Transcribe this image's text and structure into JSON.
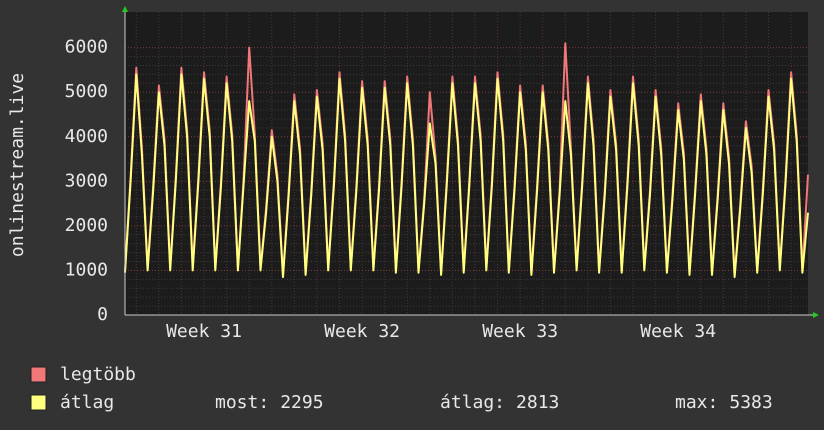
{
  "chart_data": {
    "type": "line",
    "y_label": "onlinestream.live",
    "categories": [
      null,
      null,
      null,
      null,
      null,
      null,
      null,
      null,
      null,
      null,
      null,
      null,
      null,
      null,
      "Week 31",
      null,
      null,
      null,
      null,
      null,
      null,
      null,
      null,
      null,
      null,
      null,
      null,
      null,
      null,
      null,
      null,
      null,
      null,
      null,
      null,
      null,
      null,
      null,
      null,
      null,
      null,
      null,
      "Week 32",
      null,
      null,
      null,
      null,
      null,
      null,
      null,
      null,
      null,
      null,
      null,
      null,
      null,
      null,
      null,
      null,
      null,
      null,
      null,
      null,
      null,
      null,
      null,
      null,
      null,
      null,
      null,
      "Week 33",
      null,
      null,
      null,
      null,
      null,
      null,
      null,
      null,
      null,
      null,
      null,
      null,
      null,
      null,
      null,
      null,
      null,
      null,
      null,
      null,
      null,
      null,
      null,
      null,
      null,
      null,
      null,
      "Week 34",
      null,
      null,
      null,
      null,
      null,
      null,
      null,
      null,
      null,
      null,
      null,
      null,
      null,
      null,
      null,
      null,
      null,
      null,
      null,
      null,
      null,
      null,
      null
    ],
    "series": [
      {
        "name": "legtöbb",
        "color": "#f07878",
        "values": [
          1000,
          3100,
          5550,
          3750,
          1050,
          2900,
          5150,
          3950,
          1050,
          3100,
          5550,
          4150,
          1050,
          3100,
          5450,
          4150,
          1050,
          3000,
          5350,
          4050,
          1050,
          3000,
          6000,
          4050,
          1050,
          2400,
          4150,
          3150,
          900,
          2800,
          4950,
          3750,
          950,
          2800,
          5050,
          3850,
          1050,
          3000,
          5450,
          4050,
          1050,
          2900,
          5250,
          3950,
          1050,
          2900,
          5250,
          3950,
          1000,
          3000,
          5350,
          3950,
          1000,
          2600,
          5000,
          3550,
          950,
          3000,
          5350,
          3950,
          1000,
          3000,
          5350,
          4050,
          1050,
          3000,
          5450,
          4050,
          1000,
          2900,
          5150,
          3850,
          950,
          2900,
          5150,
          3850,
          1000,
          2800,
          6100,
          3750,
          1050,
          3000,
          5350,
          3950,
          1000,
          2800,
          5050,
          3850,
          1000,
          3000,
          5350,
          3950,
          1050,
          2800,
          5050,
          3750,
          1000,
          2700,
          4750,
          3650,
          950,
          2800,
          4950,
          3750,
          950,
          2700,
          4750,
          3550,
          900,
          2500,
          4350,
          3350,
          1000,
          2800,
          5050,
          3850,
          1050,
          3000,
          5450,
          4050,
          1000,
          3150
        ]
      },
      {
        "name": "átlag",
        "color": "#ffff80",
        "values": [
          950,
          3000,
          5400,
          3600,
          1000,
          2800,
          5000,
          3800,
          1000,
          3000,
          5400,
          4000,
          1000,
          3000,
          5300,
          4000,
          1000,
          2900,
          5200,
          3900,
          1000,
          2900,
          4800,
          3900,
          1000,
          2300,
          4000,
          3000,
          850,
          2700,
          4800,
          3600,
          900,
          2700,
          4900,
          3700,
          1000,
          2900,
          5300,
          3900,
          1000,
          2800,
          5100,
          3800,
          1000,
          2800,
          5100,
          3800,
          950,
          2900,
          5200,
          3800,
          950,
          2500,
          4300,
          3400,
          900,
          2900,
          5200,
          3800,
          950,
          2900,
          5200,
          3900,
          1000,
          2900,
          5300,
          3900,
          950,
          2800,
          5000,
          3700,
          900,
          2800,
          5000,
          3700,
          950,
          2700,
          4800,
          3600,
          1000,
          2900,
          5200,
          3800,
          950,
          2700,
          4900,
          3700,
          950,
          2900,
          5200,
          3800,
          1000,
          2700,
          4900,
          3600,
          950,
          2600,
          4600,
          3500,
          900,
          2700,
          4800,
          3600,
          900,
          2600,
          4600,
          3400,
          850,
          2400,
          4200,
          3200,
          950,
          2700,
          4900,
          3700,
          1000,
          2900,
          5300,
          3900,
          950,
          2295
        ]
      }
    ],
    "stats": [
      {
        "label": "most:",
        "value": 2295
      },
      {
        "label": "átlag:",
        "value": 2813
      },
      {
        "label": "max:",
        "value": 5383
      }
    ],
    "ylim": [
      0,
      6800
    ],
    "yticks": [
      0,
      1000,
      2000,
      3000,
      4000,
      5000,
      6000
    ],
    "grid": true
  }
}
